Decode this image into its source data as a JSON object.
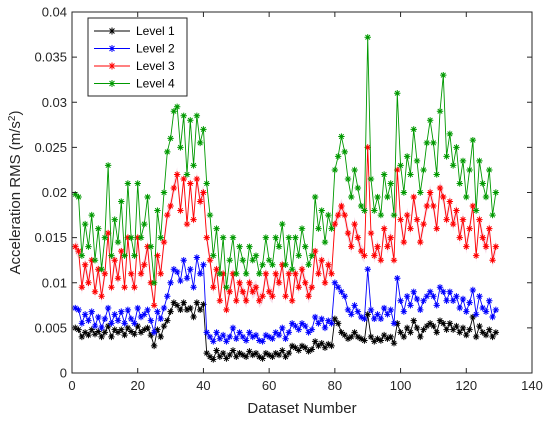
{
  "chart_data": {
    "type": "line",
    "title": "",
    "xlabel": "Dataset Number",
    "ylabel": "Acceleration RMS (m/s",
    "ylabel_sup": "2",
    "ylabel_close": ")",
    "xlim": [
      0,
      140
    ],
    "ylim": [
      0,
      0.04
    ],
    "xticks": [
      "0",
      "20",
      "40",
      "60",
      "80",
      "100",
      "120",
      "140"
    ],
    "yticks": [
      "0",
      "0.005",
      "0.01",
      "0.015",
      "0.02",
      "0.025",
      "0.03",
      "0.035",
      "0.04"
    ],
    "grid": false,
    "legend_position": "top-left",
    "marker": "asterisk",
    "x": [
      1,
      2,
      3,
      4,
      5,
      6,
      7,
      8,
      9,
      10,
      11,
      12,
      13,
      14,
      15,
      16,
      17,
      18,
      19,
      20,
      21,
      22,
      23,
      24,
      25,
      26,
      27,
      28,
      29,
      30,
      31,
      32,
      33,
      34,
      35,
      36,
      37,
      38,
      39,
      40,
      41,
      42,
      43,
      44,
      45,
      46,
      47,
      48,
      49,
      50,
      51,
      52,
      53,
      54,
      55,
      56,
      57,
      58,
      59,
      60,
      61,
      62,
      63,
      64,
      65,
      66,
      67,
      68,
      69,
      70,
      71,
      72,
      73,
      74,
      75,
      76,
      77,
      78,
      79,
      80,
      81,
      82,
      83,
      84,
      85,
      86,
      87,
      88,
      89,
      90,
      91,
      92,
      93,
      94,
      95,
      96,
      97,
      98,
      99,
      100,
      101,
      102,
      103,
      104,
      105,
      106,
      107,
      108,
      109,
      110,
      111,
      112,
      113,
      114,
      115,
      116,
      117,
      118,
      119,
      120,
      121,
      122,
      123,
      124,
      125,
      126,
      127,
      128,
      129
    ],
    "series": [
      {
        "name": "Level 1",
        "color": "#000000",
        "values": [
          0.005,
          0.0048,
          0.004,
          0.0045,
          0.0042,
          0.0048,
          0.0043,
          0.0046,
          0.004,
          0.0045,
          0.0052,
          0.004,
          0.0048,
          0.0045,
          0.0048,
          0.0042,
          0.005,
          0.0046,
          0.0043,
          0.0052,
          0.0045,
          0.0048,
          0.005,
          0.0042,
          0.003,
          0.0048,
          0.004,
          0.0052,
          0.0058,
          0.0068,
          0.0078,
          0.0075,
          0.007,
          0.0078,
          0.007,
          0.0072,
          0.0062,
          0.0078,
          0.007,
          0.0076,
          0.0022,
          0.0018,
          0.0015,
          0.0025,
          0.0018,
          0.0022,
          0.0016,
          0.002,
          0.0025,
          0.0018,
          0.0022,
          0.002,
          0.0018,
          0.0024,
          0.002,
          0.0022,
          0.0018,
          0.0016,
          0.0022,
          0.002,
          0.0018,
          0.0022,
          0.002,
          0.0025,
          0.0018,
          0.0022,
          0.003,
          0.0028,
          0.0025,
          0.003,
          0.0028,
          0.0024,
          0.0026,
          0.0035,
          0.003,
          0.0033,
          0.0028,
          0.0032,
          0.003,
          0.006,
          0.0055,
          0.0045,
          0.0042,
          0.0038,
          0.004,
          0.0045,
          0.004,
          0.0038,
          0.0036,
          0.0065,
          0.004,
          0.0035,
          0.0038,
          0.0036,
          0.0042,
          0.0038,
          0.004,
          0.0033,
          0.0055,
          0.0045,
          0.004,
          0.005,
          0.0045,
          0.0058,
          0.005,
          0.004,
          0.0048,
          0.0052,
          0.0055,
          0.0052,
          0.0045,
          0.0058,
          0.0055,
          0.0048,
          0.0055,
          0.0048,
          0.0052,
          0.0045,
          0.005,
          0.0042,
          0.0048,
          0.0062,
          0.004,
          0.0052,
          0.0045,
          0.0042,
          0.0048,
          0.004,
          0.0045
        ]
      },
      {
        "name": "Level 2",
        "color": "#0000ff",
        "values": [
          0.0072,
          0.007,
          0.0055,
          0.0065,
          0.0058,
          0.0068,
          0.0052,
          0.0062,
          0.005,
          0.006,
          0.0072,
          0.0055,
          0.0065,
          0.0058,
          0.0068,
          0.0055,
          0.007,
          0.006,
          0.0055,
          0.0072,
          0.0062,
          0.0065,
          0.007,
          0.0058,
          0.0045,
          0.0068,
          0.006,
          0.0072,
          0.0085,
          0.01,
          0.0115,
          0.0112,
          0.0102,
          0.0125,
          0.0105,
          0.0115,
          0.0095,
          0.0128,
          0.011,
          0.012,
          0.0045,
          0.004,
          0.0035,
          0.0045,
          0.0038,
          0.0042,
          0.0035,
          0.004,
          0.005,
          0.0038,
          0.0045,
          0.004,
          0.0036,
          0.0045,
          0.004,
          0.0042,
          0.0036,
          0.0035,
          0.0042,
          0.004,
          0.0038,
          0.0045,
          0.0042,
          0.005,
          0.0038,
          0.0045,
          0.0055,
          0.0052,
          0.0048,
          0.0055,
          0.0052,
          0.0045,
          0.0048,
          0.0062,
          0.0055,
          0.006,
          0.005,
          0.0058,
          0.0055,
          0.01,
          0.0095,
          0.009,
          0.0085,
          0.007,
          0.0065,
          0.0075,
          0.0068,
          0.0062,
          0.006,
          0.0115,
          0.007,
          0.006,
          0.0065,
          0.006,
          0.0072,
          0.0065,
          0.007,
          0.0055,
          0.0105,
          0.008,
          0.0068,
          0.0085,
          0.0075,
          0.009,
          0.0082,
          0.007,
          0.008,
          0.0085,
          0.009,
          0.0085,
          0.0075,
          0.0095,
          0.009,
          0.008,
          0.009,
          0.008,
          0.0085,
          0.0072,
          0.0082,
          0.0068,
          0.0078,
          0.0092,
          0.0065,
          0.0085,
          0.0072,
          0.0068,
          0.008,
          0.0062,
          0.007
        ]
      },
      {
        "name": "Level 3",
        "color": "#ff0000",
        "values": [
          0.014,
          0.0135,
          0.0095,
          0.012,
          0.01,
          0.0125,
          0.009,
          0.0115,
          0.0085,
          0.011,
          0.0155,
          0.0095,
          0.0125,
          0.0105,
          0.0135,
          0.0095,
          0.015,
          0.011,
          0.0095,
          0.015,
          0.011,
          0.012,
          0.014,
          0.01,
          0.0075,
          0.013,
          0.011,
          0.0145,
          0.0175,
          0.0185,
          0.0205,
          0.022,
          0.018,
          0.0215,
          0.0165,
          0.021,
          0.017,
          0.0215,
          0.019,
          0.02,
          0.015,
          0.0125,
          0.0095,
          0.0115,
          0.008,
          0.011,
          0.007,
          0.009,
          0.011,
          0.008,
          0.01,
          0.009,
          0.008,
          0.01,
          0.009,
          0.0095,
          0.008,
          0.0085,
          0.011,
          0.009,
          0.0085,
          0.011,
          0.01,
          0.012,
          0.0085,
          0.011,
          0.008,
          0.011,
          0.0095,
          0.0115,
          0.01,
          0.0085,
          0.0095,
          0.0135,
          0.011,
          0.0125,
          0.01,
          0.012,
          0.011,
          0.0165,
          0.0175,
          0.0185,
          0.0175,
          0.0155,
          0.014,
          0.0165,
          0.015,
          0.0135,
          0.013,
          0.025,
          0.0155,
          0.013,
          0.014,
          0.0125,
          0.016,
          0.014,
          0.015,
          0.0125,
          0.0225,
          0.017,
          0.0145,
          0.0175,
          0.016,
          0.0195,
          0.017,
          0.0145,
          0.0165,
          0.0185,
          0.02,
          0.0185,
          0.016,
          0.0205,
          0.0195,
          0.017,
          0.019,
          0.0165,
          0.018,
          0.015,
          0.017,
          0.014,
          0.016,
          0.0185,
          0.013,
          0.017,
          0.015,
          0.014,
          0.016,
          0.0125,
          0.014
        ]
      },
      {
        "name": "Level 4",
        "color": "#009900",
        "values": [
          0.0198,
          0.0195,
          0.013,
          0.0165,
          0.014,
          0.0175,
          0.0125,
          0.016,
          0.0115,
          0.015,
          0.023,
          0.013,
          0.017,
          0.0145,
          0.019,
          0.013,
          0.021,
          0.015,
          0.013,
          0.021,
          0.015,
          0.0165,
          0.0195,
          0.014,
          0.01,
          0.018,
          0.015,
          0.02,
          0.0245,
          0.026,
          0.029,
          0.0295,
          0.025,
          0.0285,
          0.022,
          0.028,
          0.023,
          0.0285,
          0.0255,
          0.027,
          0.021,
          0.0175,
          0.013,
          0.016,
          0.011,
          0.015,
          0.0095,
          0.0125,
          0.015,
          0.011,
          0.014,
          0.0125,
          0.011,
          0.014,
          0.0125,
          0.013,
          0.011,
          0.012,
          0.015,
          0.0125,
          0.012,
          0.015,
          0.014,
          0.0165,
          0.012,
          0.015,
          0.0115,
          0.015,
          0.013,
          0.016,
          0.014,
          0.012,
          0.013,
          0.0195,
          0.016,
          0.018,
          0.0145,
          0.0175,
          0.016,
          0.0225,
          0.024,
          0.0262,
          0.0245,
          0.0215,
          0.0195,
          0.0225,
          0.0205,
          0.0185,
          0.018,
          0.0372,
          0.0215,
          0.018,
          0.0195,
          0.0175,
          0.022,
          0.0195,
          0.021,
          0.0175,
          0.031,
          0.023,
          0.02,
          0.024,
          0.022,
          0.027,
          0.0235,
          0.02,
          0.0225,
          0.0255,
          0.028,
          0.0255,
          0.022,
          0.029,
          0.033,
          0.024,
          0.0265,
          0.023,
          0.025,
          0.021,
          0.0235,
          0.0195,
          0.0225,
          0.0258,
          0.018,
          0.0235,
          0.021,
          0.0195,
          0.0225,
          0.0175,
          0.02
        ]
      }
    ]
  }
}
